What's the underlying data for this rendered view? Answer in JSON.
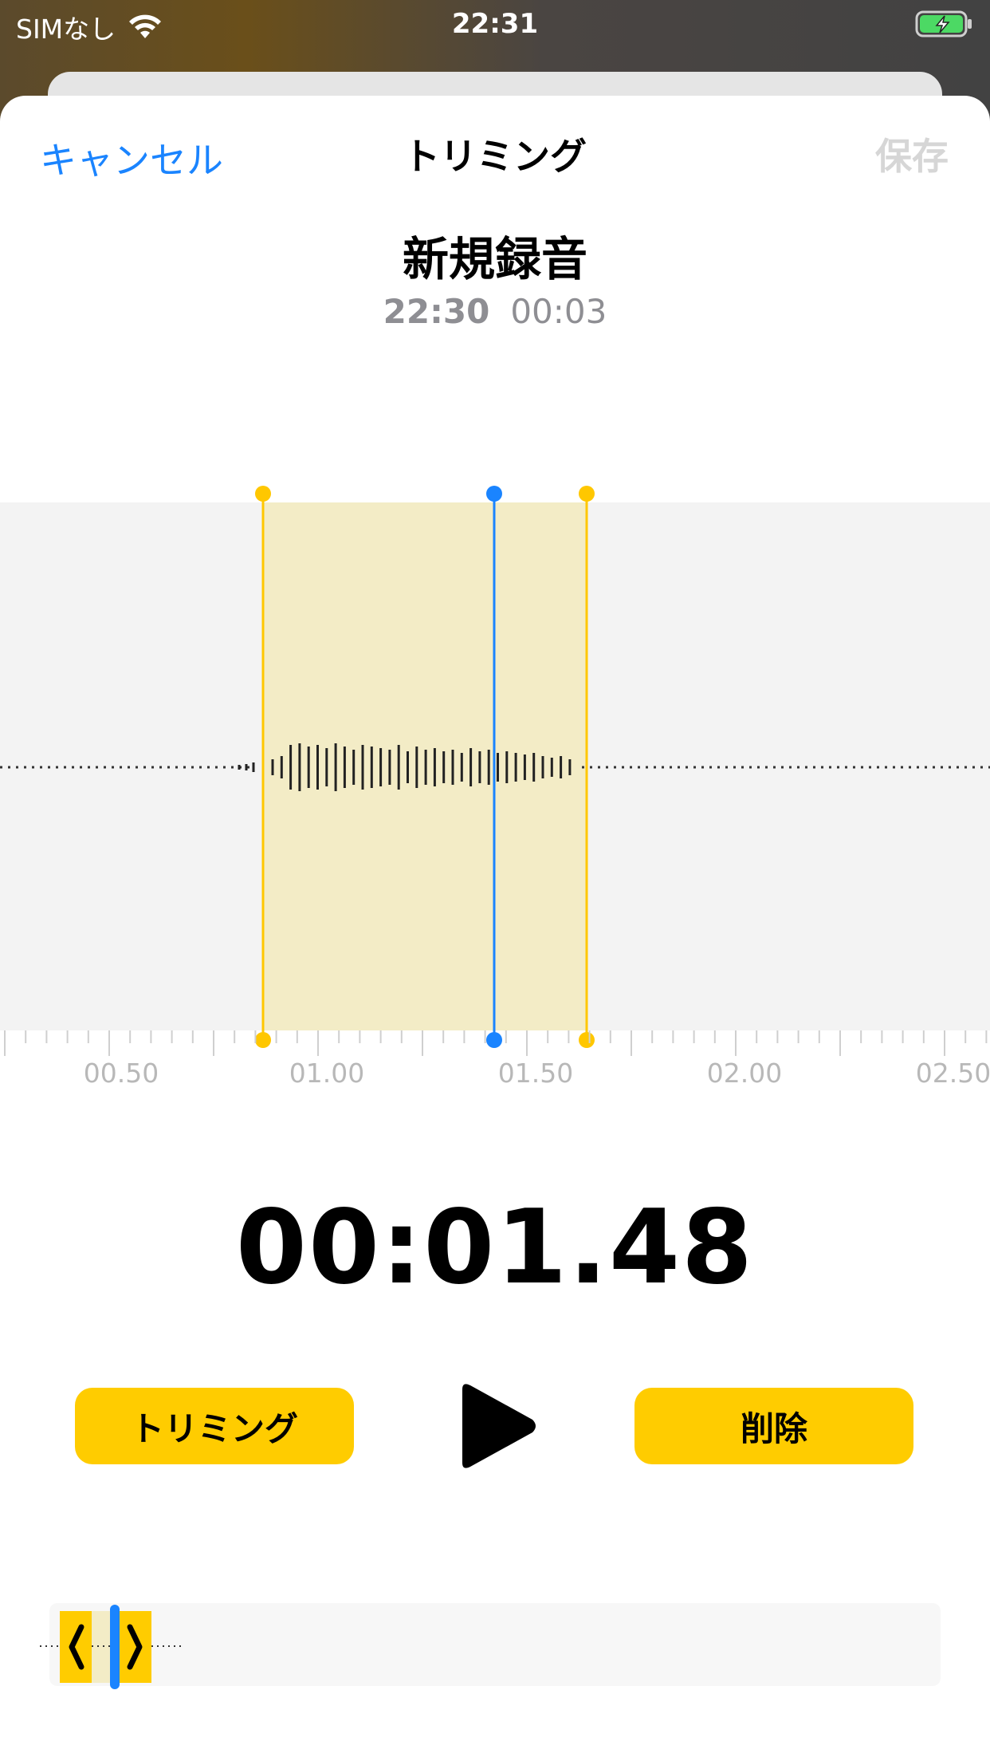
{
  "status_bar": {
    "carrier": "SIMなし",
    "time": "22:31",
    "wifi_icon": "wifi-icon",
    "battery_icon": "battery-charging-icon"
  },
  "nav": {
    "cancel_label": "キャンセル",
    "title": "トリミング",
    "save_label": "保存"
  },
  "recording": {
    "title": "新規録音",
    "created_time": "22:30",
    "duration": "00:03"
  },
  "waveform": {
    "ruler_labels": [
      "00.50",
      "01.00",
      "01.50",
      "02.00",
      "02.50"
    ],
    "trim_start_color": "#ffc700",
    "trim_end_color": "#ffc700",
    "playhead_color": "#1a84ff",
    "selection_color": "#f3ecc6"
  },
  "playback": {
    "current_time": "00:01.48",
    "play_icon": "play-icon"
  },
  "actions": {
    "trim_label": "トリミング",
    "delete_label": "削除"
  },
  "colors": {
    "accent": "#1a84ff",
    "button": "#ffcc00"
  }
}
